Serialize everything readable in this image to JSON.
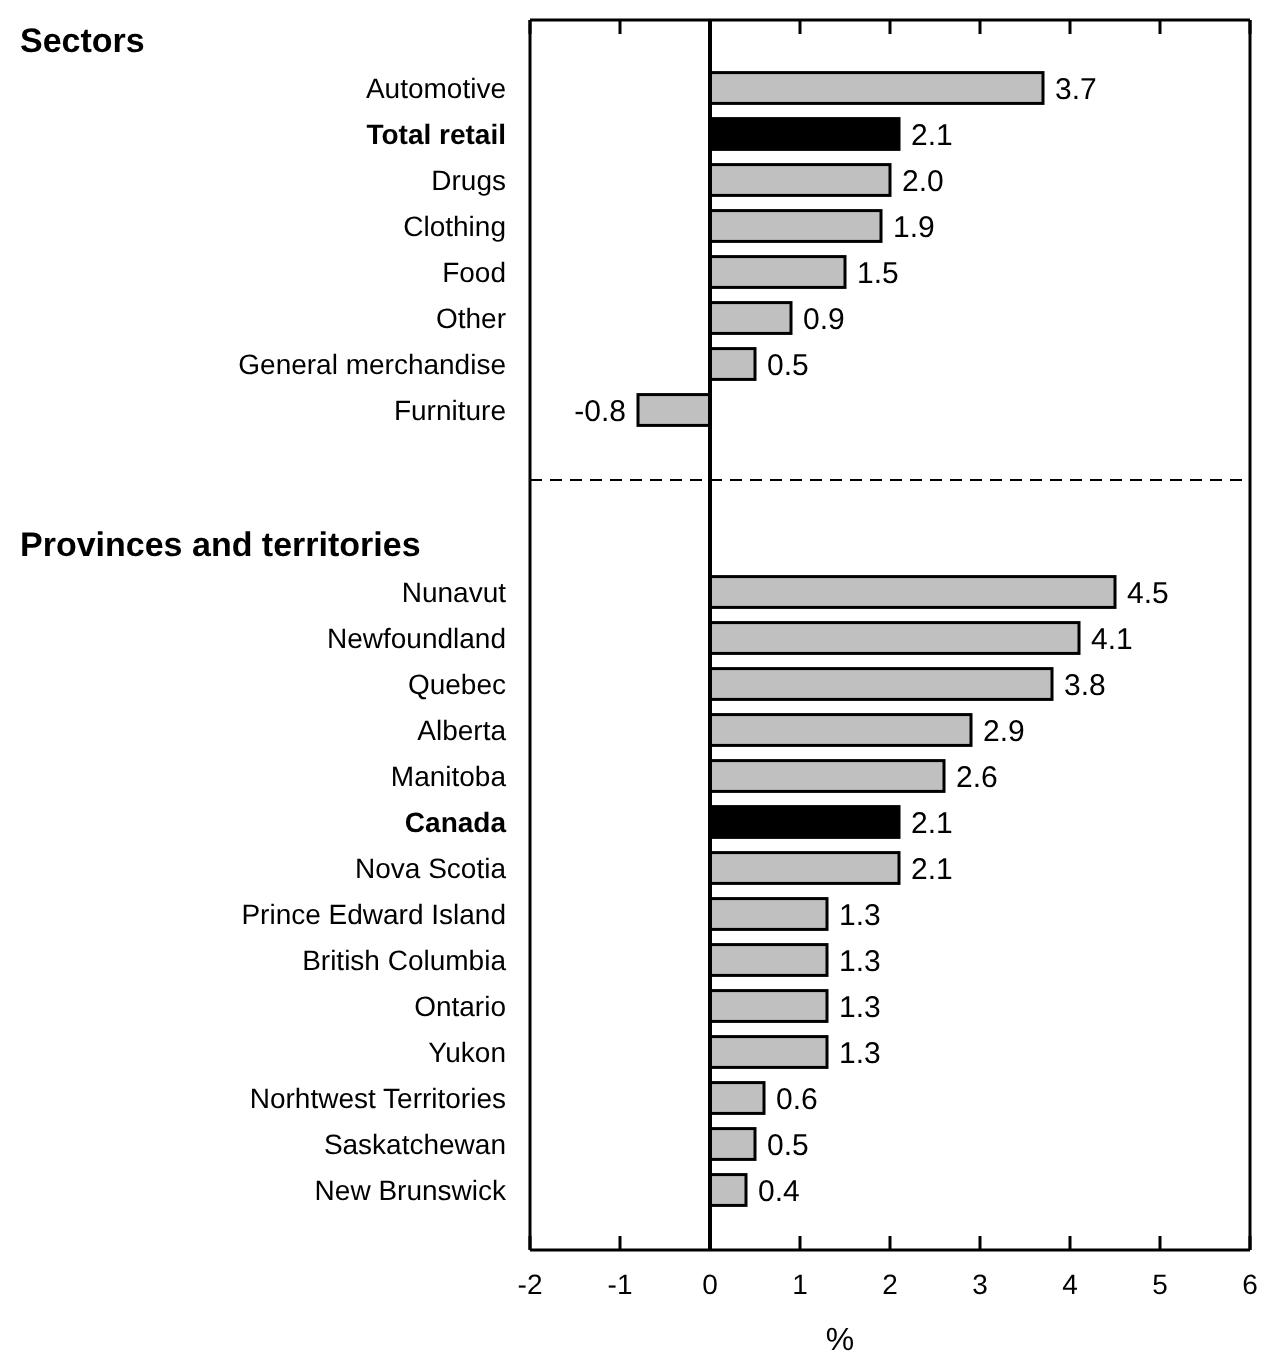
{
  "chart_data": [
    {
      "type": "bar",
      "orientation": "horizontal",
      "title": "Sectors",
      "categories": [
        "Automotive",
        "Total retail",
        "Drugs",
        "Clothing",
        "Food",
        "Other",
        "General merchandise",
        "Furniture"
      ],
      "values": [
        3.7,
        2.1,
        2.0,
        1.9,
        1.5,
        0.9,
        0.5,
        -0.8
      ],
      "value_labels": [
        "3.7",
        "2.1",
        "2.0",
        "1.9",
        "1.5",
        "0.9",
        "0.5",
        "-0.8"
      ],
      "colors": [
        "#c0c0c0",
        "#000000",
        "#c0c0c0",
        "#c0c0c0",
        "#c0c0c0",
        "#c0c0c0",
        "#c0c0c0",
        "#c0c0c0"
      ],
      "xlim": [
        -2,
        6
      ],
      "xticks": [
        -2,
        -1,
        0,
        1,
        2,
        3,
        4,
        5,
        6
      ],
      "tick_labels": "y",
      "ref_lines": [
        {
          "axis": "x",
          "value": 0,
          "line_style": "solid"
        }
      ],
      "grid": false
    },
    {
      "type": "bar",
      "orientation": "horizontal",
      "title": "Provinces and territories",
      "xlabel": "%",
      "categories": [
        "Nunavut",
        "Newfoundland",
        "Quebec",
        "Alberta",
        "Manitoba",
        "Canada",
        "Nova Scotia",
        "Prince Edward Island",
        "British Columbia",
        "Ontario",
        "Yukon",
        "Norhtwest Territories",
        "Saskatchewan",
        "New Brunswick"
      ],
      "values": [
        4.5,
        4.1,
        3.8,
        2.9,
        2.6,
        2.1,
        2.1,
        1.3,
        1.3,
        1.3,
        1.3,
        0.6,
        0.5,
        0.4
      ],
      "value_labels": [
        "4.5",
        "4.1",
        "3.8",
        "2.9",
        "2.6",
        "2.1",
        "2.1",
        "1.3",
        "1.3",
        "1.3",
        "1.3",
        "0.6",
        "0.5",
        "0.4"
      ],
      "colors": [
        "#c0c0c0",
        "#c0c0c0",
        "#c0c0c0",
        "#c0c0c0",
        "#c0c0c0",
        "#000000",
        "#c0c0c0",
        "#c0c0c0",
        "#c0c0c0",
        "#c0c0c0",
        "#c0c0c0",
        "#c0c0c0",
        "#c0c0c0",
        "#c0c0c0"
      ],
      "xlim": [
        -2,
        6
      ],
      "xticks": [
        -2,
        -1,
        0,
        1,
        2,
        3,
        4,
        5,
        6
      ],
      "ref_lines": [
        {
          "axis": "x",
          "value": 0,
          "line_style": "solid"
        }
      ],
      "grid": false
    }
  ]
}
